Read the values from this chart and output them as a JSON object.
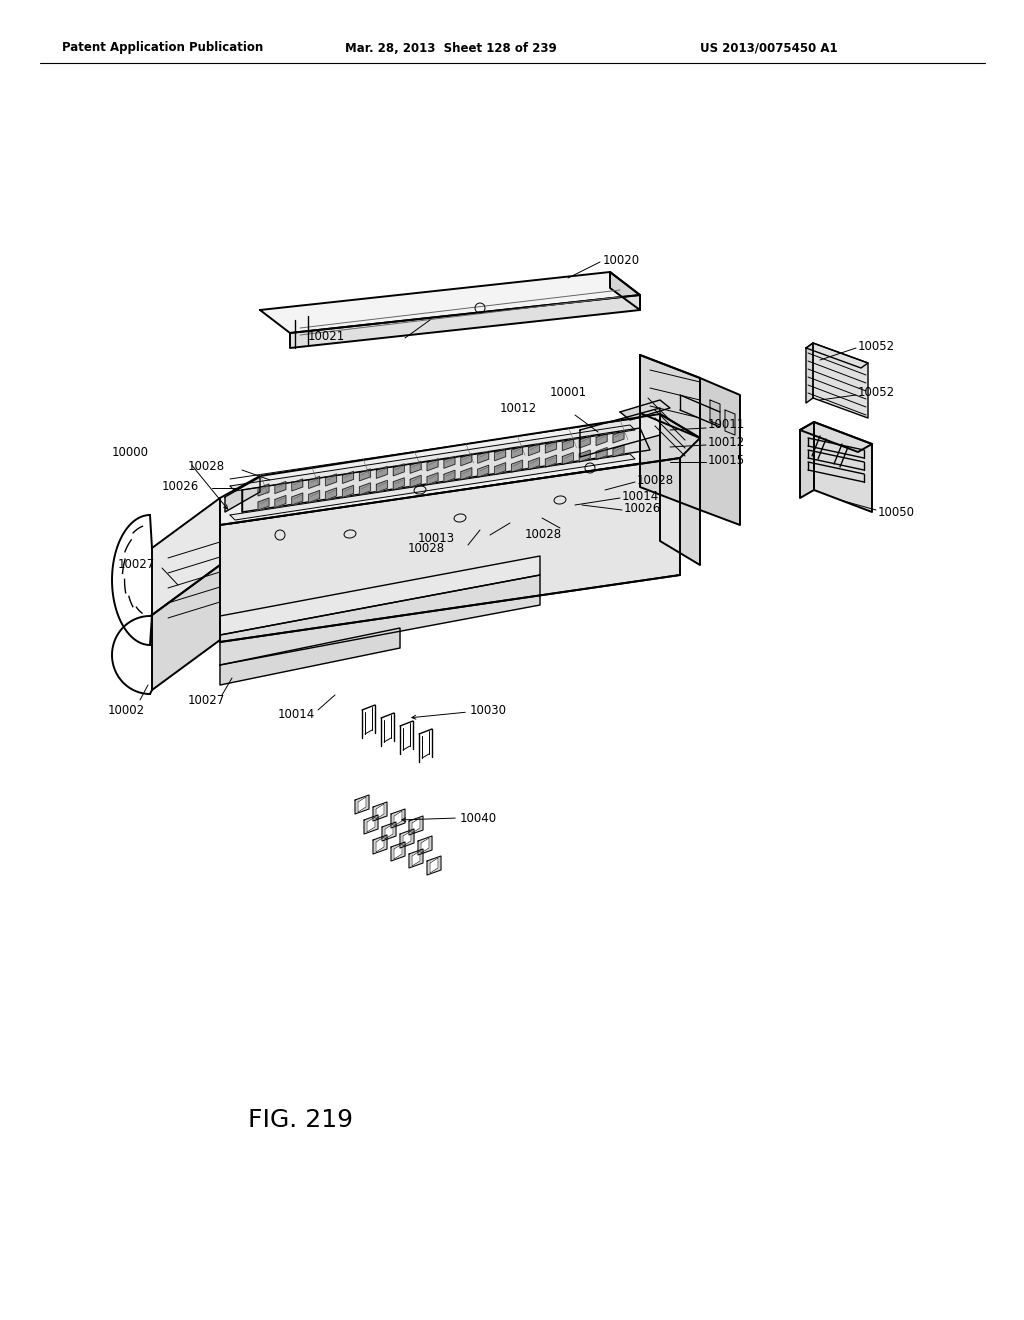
{
  "bg_color": "#ffffff",
  "header_left": "Patent Application Publication",
  "header_center": "Mar. 28, 2013  Sheet 128 of 239",
  "header_right": "US 2013/0075450 A1",
  "figure_label": "FIG. 219",
  "lw0": 0.7,
  "lw1": 1.0,
  "lw2": 1.4,
  "fs": 8.5,
  "fs_fig": 18,
  "fs_hdr": 8.5
}
